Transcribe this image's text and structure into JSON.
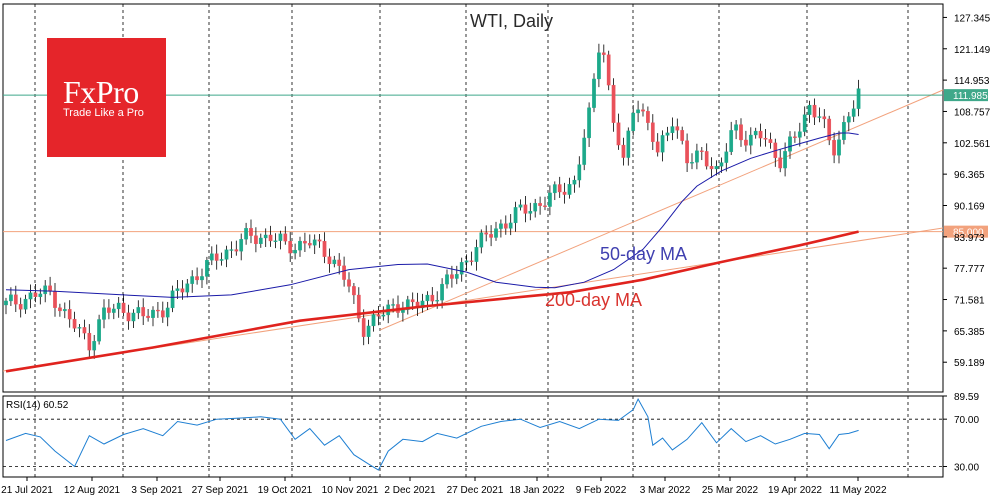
{
  "chart_data": [
    {
      "type": "candlestick",
      "title": "WTI, Daily",
      "y_ticks": [
        "127.345",
        "121.149",
        "114.953",
        "108.757",
        "102.561",
        "96.365",
        "90.169",
        "83.973",
        "77.777",
        "71.581",
        "65.385",
        "59.189"
      ],
      "ylim": [
        53.3,
        130.0
      ],
      "x_ticks": [
        "21 Jul 2021",
        "12 Aug 2021",
        "3 Sep 2021",
        "27 Sep 2021",
        "19 Oct 2021",
        "10 Nov 2021",
        "2 Dec 2021",
        "27 Dec 2021",
        "18 Jan 2022",
        "9 Feb 2022",
        "3 Mar 2022",
        "25 Mar 2022",
        "19 Apr 2022",
        "11 May 2022"
      ],
      "current_price": "111.985",
      "horizontal_level": "85.000",
      "colors": {
        "up_candle": "#1ca98a",
        "down_candle": "#e9515a",
        "ma50": "#1a1aa8",
        "ma200": "#e0231e",
        "trend_lines": "#f2a27d",
        "price_line": "#3fa88a"
      },
      "series": [
        {
          "name": "50-day MA",
          "values": [
            [
              0,
              73.5
            ],
            [
              10,
              73.2
            ],
            [
              22,
              72.6
            ],
            [
              34,
              72.0
            ],
            [
              46,
              72.5
            ],
            [
              58,
              74.5
            ],
            [
              70,
              77.5
            ],
            [
              80,
              78.5
            ],
            [
              86,
              78.6
            ],
            [
              94,
              77.0
            ],
            [
              100,
              75.0
            ],
            [
              108,
              74.0
            ],
            [
              112,
              73.9
            ],
            [
              118,
              75.0
            ],
            [
              124,
              77.5
            ],
            [
              130,
              81.5
            ],
            [
              134,
              86.0
            ],
            [
              138,
              91.0
            ],
            [
              141,
              94.0
            ],
            [
              146,
              97.0
            ],
            [
              152,
              99.5
            ],
            [
              157,
              101.0
            ],
            [
              162,
              102.4
            ],
            [
              166,
              103.5
            ],
            [
              170,
              104.5
            ],
            [
              172,
              104.5
            ],
            [
              174,
              104.2
            ]
          ]
        },
        {
          "name": "200-day MA",
          "values": [
            [
              0,
              57.4
            ],
            [
              30,
              62.1
            ],
            [
              60,
              67.4
            ],
            [
              85,
              70.2
            ],
            [
              100,
              71.6
            ],
            [
              115,
              73.0
            ],
            [
              130,
              75.5
            ],
            [
              146,
              79.0
            ],
            [
              162,
              82.3
            ],
            [
              174,
              85.0
            ]
          ]
        }
      ],
      "annotations": [
        "50-day MA",
        "200-day MA"
      ]
    },
    {
      "type": "line",
      "title": "RSI(14) 60.52",
      "y_ticks": [
        "89.59",
        "70.00",
        "30.00"
      ],
      "ylim": [
        21.11,
        89.59
      ],
      "levels": [
        70,
        30
      ],
      "series": [
        {
          "name": "RSI(14)",
          "values": [
            [
              0,
              52
            ],
            [
              4,
              58
            ],
            [
              7,
              55
            ],
            [
              10,
              43
            ],
            [
              14,
              30
            ],
            [
              17,
              56
            ],
            [
              20,
              49
            ],
            [
              24,
              57
            ],
            [
              28,
              62
            ],
            [
              32,
              56
            ],
            [
              35,
              68
            ],
            [
              39,
              65
            ],
            [
              43,
              70
            ],
            [
              48,
              71
            ],
            [
              52,
              72
            ],
            [
              56,
              70
            ],
            [
              59,
              53
            ],
            [
              62,
              62
            ],
            [
              65,
              48
            ],
            [
              68,
              56
            ],
            [
              71,
              40
            ],
            [
              74,
              32
            ],
            [
              76,
              27
            ],
            [
              78,
              43
            ],
            [
              81,
              53
            ],
            [
              85,
              51
            ],
            [
              88,
              58
            ],
            [
              92,
              54
            ],
            [
              97,
              64
            ],
            [
              101,
              68
            ],
            [
              105,
              70
            ],
            [
              109,
              63
            ],
            [
              113,
              68
            ],
            [
              117,
              62
            ],
            [
              121,
              70
            ],
            [
              125,
              69
            ],
            [
              128,
              78
            ],
            [
              129,
              87
            ],
            [
              131,
              72
            ],
            [
              132,
              48
            ],
            [
              134,
              54
            ],
            [
              136,
              44
            ],
            [
              139,
              53
            ],
            [
              142,
              67
            ],
            [
              145,
              50
            ],
            [
              148,
              62
            ],
            [
              151,
              51
            ],
            [
              154,
              56
            ],
            [
              157,
              49
            ],
            [
              160,
              53
            ],
            [
              163,
              58
            ],
            [
              166,
              57
            ],
            [
              168,
              45
            ],
            [
              170,
              57
            ],
            [
              172,
              58
            ],
            [
              174,
              60.5
            ]
          ]
        }
      ]
    }
  ],
  "logo": {
    "name": "FxPro",
    "tagline": "Trade Like a Pro"
  }
}
